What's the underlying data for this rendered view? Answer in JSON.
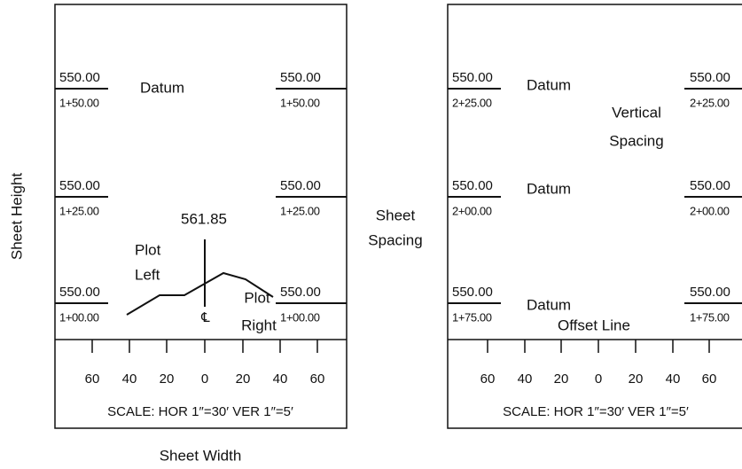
{
  "labels": {
    "sheet_height": "Sheet Height",
    "sheet_width": "Sheet Width",
    "sheet_spacing": [
      "Sheet",
      "Spacing"
    ]
  },
  "left_sheet": {
    "rows": [
      {
        "elevation": "550.00",
        "station": "1+50.00"
      },
      {
        "elevation": "550.00",
        "station": "1+25.00"
      },
      {
        "elevation": "550.00",
        "station": "1+00.00"
      }
    ],
    "datum": "Datum",
    "elevation_label": "561.85",
    "plot_left": [
      "Plot",
      "Left"
    ],
    "plot_right": [
      "Plot",
      "Right"
    ],
    "centerline": "℄",
    "scale_labels": [
      "60",
      "40",
      "20",
      "0",
      "20",
      "40",
      "60"
    ],
    "scale": "SCALE: HOR 1″=30′ VER 1″=5′"
  },
  "right_sheet": {
    "rows": [
      {
        "elevation": "550.00",
        "station": "2+25.00"
      },
      {
        "elevation": "550.00",
        "station": "2+00.00"
      },
      {
        "elevation": "550.00",
        "station": "1+75.00"
      }
    ],
    "datum_labels": [
      "Datum",
      "Datum",
      "Datum"
    ],
    "vertical_spacing": [
      "Vertical",
      "Spacing"
    ],
    "offset_line": "Offset Line",
    "scale_labels": [
      "60",
      "40",
      "20",
      "0",
      "20",
      "40",
      "60"
    ],
    "scale": "SCALE: HOR 1″=30′ VER 1″=5′"
  }
}
